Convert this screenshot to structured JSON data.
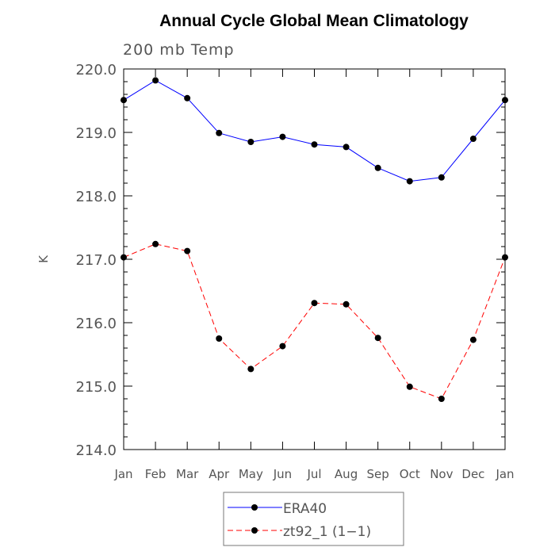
{
  "chart_data": {
    "type": "line",
    "title": "Annual Cycle Global Mean Climatology",
    "subtitle": "200 mb Temp",
    "ylabel": "K",
    "xlabel": "",
    "categories": [
      "Jan",
      "Feb",
      "Mar",
      "Apr",
      "May",
      "Jun",
      "Jul",
      "Aug",
      "Sep",
      "Oct",
      "Nov",
      "Dec",
      "Jan"
    ],
    "yticks": [
      "214.0",
      "215.0",
      "216.0",
      "217.0",
      "218.0",
      "219.0",
      "220.0"
    ],
    "ylim": [
      214.0,
      220.0
    ],
    "grid": false,
    "legend_position": "bottom-center",
    "series": [
      {
        "name": "ERA40",
        "color": "#0000ff",
        "dash": "solid",
        "marker": "filled-circle",
        "values": [
          219.51,
          219.82,
          219.54,
          218.99,
          218.85,
          218.93,
          218.81,
          218.77,
          218.44,
          218.23,
          218.29,
          218.9,
          219.51
        ]
      },
      {
        "name": "zt92_1 (1−1)",
        "color": "#ff0000",
        "dash": "dashed",
        "marker": "filled-circle",
        "values": [
          217.03,
          217.24,
          217.13,
          215.75,
          215.27,
          215.63,
          216.31,
          216.29,
          215.76,
          214.99,
          214.8,
          215.73,
          217.03
        ]
      }
    ]
  }
}
